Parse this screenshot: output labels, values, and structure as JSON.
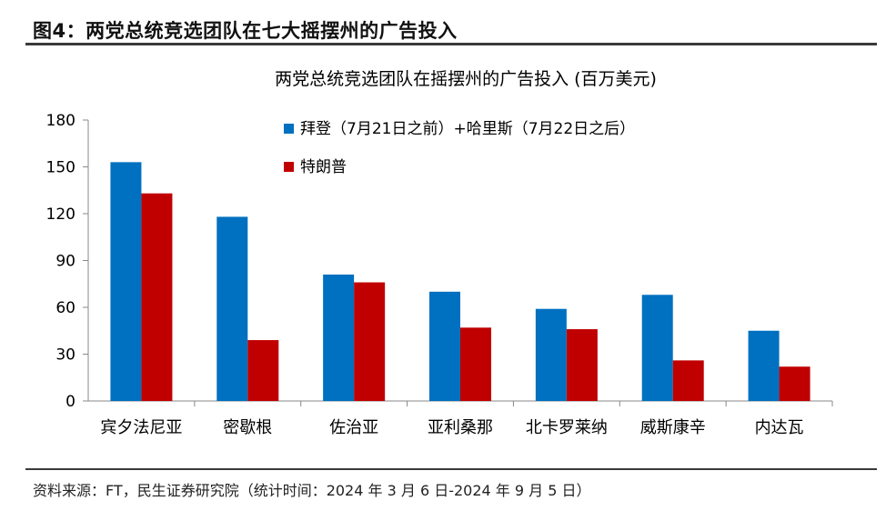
{
  "figure_title": "图4：两党总统竞选团队在七大摇摆州的广告投入",
  "source_note": "资料来源：FT，民生证券研究院（统计时间：2024 年 3 月 6 日-2024 年 9 月 5 日）",
  "chart_data": {
    "type": "bar",
    "title": "两党总统竞选团队在摇摆州的广告投入 (百万美元)",
    "xlabel": "",
    "ylabel": "",
    "ylim": [
      0,
      180
    ],
    "yticks": [
      0,
      30,
      60,
      90,
      120,
      150,
      180
    ],
    "grid": false,
    "legend_position": "top-right",
    "categories": [
      "宾夕法尼亚",
      "密歇根",
      "佐治亚",
      "亚利桑那",
      "北卡罗莱纳",
      "威斯康辛",
      "内达瓦"
    ],
    "series": [
      {
        "name": "拜登（7月21日之前）+哈里斯（7月22日之后）",
        "color": "#0070c0",
        "values": [
          153,
          118,
          81,
          70,
          59,
          68,
          45
        ]
      },
      {
        "name": "特朗普",
        "color": "#c00000",
        "values": [
          133,
          39,
          76,
          47,
          46,
          26,
          22
        ]
      }
    ]
  }
}
